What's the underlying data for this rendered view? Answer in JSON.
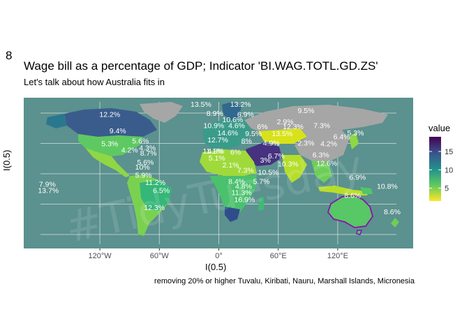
{
  "figure_tag": "8",
  "chart_data": {
    "type": "choropleth-map",
    "title": "Wage bill as a percentage of GDP; Indicator 'BI.WAG.TOTL.GD.ZS'",
    "subtitle": "Let's talk about how Australia fits in",
    "caption": "removing 20% or higher Tuvalu, Kiribati, Nauru, Marshall Islands, Micronesia",
    "xlabel": "I(0.5)",
    "ylabel": "I(0.5)",
    "watermark": "#TidyTuesday",
    "x_ticks": [
      "120°W",
      "60°W",
      "0°",
      "60°E",
      "120°E"
    ],
    "x_tick_values": [
      -120,
      -60,
      0,
      60,
      120
    ],
    "legend": {
      "title": "value",
      "ticks": [
        15,
        10,
        5
      ],
      "range": [
        1.5,
        19
      ],
      "palette": "viridis (reversed)",
      "colors": [
        "#440154",
        "#3b528b",
        "#21918c",
        "#5ec962",
        "#fde725"
      ]
    },
    "highlight": {
      "country": "Australia",
      "value": 8.6,
      "outline_color": "#8b10b0"
    },
    "no_data_color": "#a6a6a6",
    "ocean_color": "#5b918e",
    "labels": [
      {
        "text": "12.2%",
        "lon": -110,
        "lat": 58
      },
      {
        "text": "13.5%",
        "lon": -18,
        "lat": 68
      },
      {
        "text": "13.2%",
        "lon": 22,
        "lat": 68
      },
      {
        "text": "9.5%",
        "lon": 88,
        "lat": 62
      },
      {
        "text": "8.9%",
        "lon": -4,
        "lat": 59
      },
      {
        "text": "6.9%",
        "lon": 27,
        "lat": 58
      },
      {
        "text": "10.6%",
        "lon": 14,
        "lat": 53
      },
      {
        "text": "2.9%",
        "lon": 67,
        "lat": 51
      },
      {
        "text": "7.3%",
        "lon": 104,
        "lat": 47
      },
      {
        "text": "5.3%",
        "lon": 138,
        "lat": 40
      },
      {
        "text": "6.4%",
        "lon": 124,
        "lat": 36
      },
      {
        "text": "10.9%",
        "lon": -5,
        "lat": 47
      },
      {
        "text": "4.6%",
        "lon": 18,
        "lat": 47
      },
      {
        "text": "6%",
        "lon": 44,
        "lat": 46
      },
      {
        "text": "12.3%",
        "lon": 75,
        "lat": 46
      },
      {
        "text": "9.4%",
        "lon": -102,
        "lat": 42
      },
      {
        "text": "14.6%",
        "lon": 9,
        "lat": 40
      },
      {
        "text": "9.5%",
        "lon": 35,
        "lat": 39
      },
      {
        "text": "13.5%",
        "lon": 64,
        "lat": 39
      },
      {
        "text": "5.6%",
        "lon": -79,
        "lat": 32
      },
      {
        "text": "12.7%",
        "lon": -1,
        "lat": 33
      },
      {
        "text": "8%",
        "lon": 28,
        "lat": 32
      },
      {
        "text": "4.9%",
        "lon": 53,
        "lat": 30
      },
      {
        "text": "2.3%",
        "lon": 88,
        "lat": 30
      },
      {
        "text": "4.2%",
        "lon": 111,
        "lat": 29
      },
      {
        "text": "5.3%",
        "lon": -110,
        "lat": 29
      },
      {
        "text": "4.3%",
        "lon": -72,
        "lat": 25
      },
      {
        "text": "4.2%",
        "lon": -90,
        "lat": 23
      },
      {
        "text": "8.7%",
        "lon": -71,
        "lat": 20
      },
      {
        "text": "11.1%",
        "lon": -6,
        "lat": 22
      },
      {
        "text": "4.8%",
        "lon": -3,
        "lat": 22
      },
      {
        "text": "6%",
        "lon": 17,
        "lat": 21
      },
      {
        "text": "6.3%",
        "lon": 103,
        "lat": 18
      },
      {
        "text": "6.7%",
        "lon": 58,
        "lat": 17
      },
      {
        "text": "5.1%",
        "lon": -2,
        "lat": 15
      },
      {
        "text": "3%",
        "lon": 47,
        "lat": 13
      },
      {
        "text": "12.6%",
        "lon": 109,
        "lat": 10
      },
      {
        "text": "10.3%",
        "lon": 70,
        "lat": 9
      },
      {
        "text": "5.6%",
        "lon": -74,
        "lat": 11
      },
      {
        "text": "2.1%",
        "lon": 12,
        "lat": 8
      },
      {
        "text": "10%",
        "lon": -77,
        "lat": 6
      },
      {
        "text": "7.3%",
        "lon": 27,
        "lat": 3
      },
      {
        "text": "10.5%",
        "lon": 50,
        "lat": 1
      },
      {
        "text": "5.9%",
        "lon": -76,
        "lat": -2
      },
      {
        "text": "8.4%",
        "lon": 18,
        "lat": -8
      },
      {
        "text": "5.7%",
        "lon": 43,
        "lat": -8
      },
      {
        "text": "6.9%",
        "lon": 140,
        "lat": -4
      },
      {
        "text": "11.2%",
        "lon": -64,
        "lat": -9
      },
      {
        "text": "4.8%",
        "lon": 25,
        "lat": -13
      },
      {
        "text": "7.9%",
        "lon": -173,
        "lat": -11
      },
      {
        "text": "10.8%",
        "lon": 170,
        "lat": -13
      },
      {
        "text": "13.7%",
        "lon": -172,
        "lat": -17
      },
      {
        "text": "6.5%",
        "lon": -58,
        "lat": -17
      },
      {
        "text": "11.3%",
        "lon": 23,
        "lat": -19
      },
      {
        "text": "8.6%",
        "lon": 135,
        "lat": -22
      },
      {
        "text": "16.9%",
        "lon": 26,
        "lat": -26
      },
      {
        "text": "12.3%",
        "lon": -65,
        "lat": -34
      },
      {
        "text": "8.6%",
        "lon": 175,
        "lat": -38
      }
    ]
  }
}
